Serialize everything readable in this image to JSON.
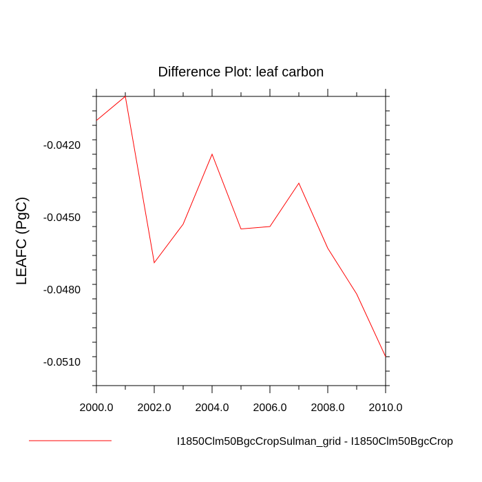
{
  "chart_data": {
    "type": "line",
    "title": "Difference Plot: leaf carbon",
    "xlabel": "",
    "ylabel": "LEAFC  (PgC)",
    "xlim": [
      2000,
      2010
    ],
    "ylim": [
      -0.052,
      -0.04
    ],
    "x_ticks": [
      "2000.0",
      "2002.0",
      "2004.0",
      "2006.0",
      "2008.0",
      "2010.0"
    ],
    "y_ticks": [
      "-0.0420",
      "-0.0450",
      "-0.0480",
      "-0.0510"
    ],
    "x_tick_values": [
      2000,
      2002,
      2004,
      2006,
      2008,
      2010
    ],
    "y_tick_values": [
      -0.042,
      -0.045,
      -0.048,
      -0.051
    ],
    "grid": false,
    "legend": "bottom",
    "series": [
      {
        "name": "I1850Clm50BgcCropSulman_grid - I1850Clm50BgcCrop",
        "color": "#ff0000",
        "x": [
          2000,
          2001,
          2002,
          2003,
          2004,
          2005,
          2006,
          2007,
          2008,
          2009,
          2010
        ],
        "values": [
          -0.041,
          -0.04,
          -0.0469,
          -0.0453,
          -0.0424,
          -0.0455,
          -0.0454,
          -0.0436,
          -0.0463,
          -0.0482,
          -0.0508
        ]
      }
    ]
  }
}
